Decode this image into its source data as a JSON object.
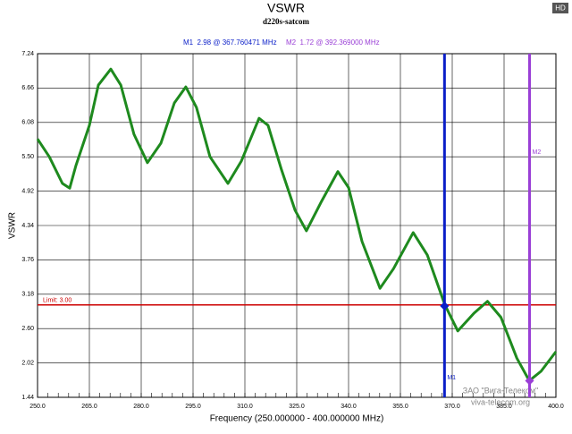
{
  "chart_data": {
    "type": "line",
    "title": "VSWR",
    "subtitle": "d220s-satcom",
    "badge": "HD",
    "x_label": "Frequency (250.000000 - 400.000000 MHz)",
    "y_label": "VSWR",
    "xlim": [
      250,
      400
    ],
    "ylim": [
      1.44,
      7.24
    ],
    "xticks": [
      {
        "value": 250,
        "label": "250.0"
      },
      {
        "value": 265,
        "label": "265.0"
      },
      {
        "value": 280,
        "label": "280.0"
      },
      {
        "value": 295,
        "label": "295.0"
      },
      {
        "value": 310,
        "label": "310.0"
      },
      {
        "value": 325,
        "label": "325.0"
      },
      {
        "value": 340,
        "label": "340.0"
      },
      {
        "value": 355,
        "label": "355.0"
      },
      {
        "value": 370,
        "label": "370.0"
      },
      {
        "value": 385,
        "label": "385.0"
      },
      {
        "value": 400,
        "label": "400.0"
      }
    ],
    "yticks": [
      1.44,
      2.02,
      {
        "value": 2.6,
        "label": "2.60"
      },
      3.18,
      3.76,
      4.34,
      4.92,
      {
        "value": 5.5,
        "label": "5.50"
      },
      6.08,
      6.66,
      7.24
    ],
    "grid": true,
    "series": [
      {
        "color": "#1e8a1e",
        "x": [
          250,
          253.4,
          257.2,
          259.3,
          261.1,
          265,
          267.6,
          271.2,
          274.1,
          277.9,
          281.8,
          285.7,
          289.6,
          292.9,
          296,
          299.9,
          305.1,
          309,
          314.1,
          316.7,
          320.6,
          324.5,
          327.8,
          332.2,
          336.9,
          340,
          343.9,
          349.1,
          353,
          358.7,
          362.8,
          367.8,
          371.6,
          376.3,
          380.2,
          384.1,
          388.7,
          392.3,
          395.7,
          400
        ],
        "values": [
          5.8,
          5.5,
          5.05,
          4.97,
          5.35,
          6.03,
          6.71,
          6.98,
          6.71,
          5.88,
          5.4,
          5.73,
          6.41,
          6.68,
          6.33,
          5.5,
          5.05,
          5.43,
          6.15,
          6.03,
          5.28,
          4.6,
          4.25,
          4.75,
          5.25,
          4.98,
          4.07,
          3.28,
          3.61,
          4.22,
          3.84,
          3.01,
          2.56,
          2.86,
          3.06,
          2.79,
          2.1,
          1.72,
          1.88,
          2.21
        ]
      }
    ],
    "limit": {
      "value": 3,
      "label": "Limit: 3.00",
      "color": "#cc0000"
    },
    "markers": [
      {
        "name": "M1",
        "x": 367.760471,
        "value": 2.98,
        "color": "#0a1ec8",
        "label": "M1  2.98 @ 367.760471 MHz"
      },
      {
        "name": "M2",
        "x": 392.369,
        "value": 1.72,
        "color": "#9a3fd6",
        "label": "M2  1.72 @ 392.369000 MHz"
      }
    ],
    "watermark": [
      "ЗАО \"Вига-Телеком\"",
      "viva-telecom.org"
    ]
  }
}
